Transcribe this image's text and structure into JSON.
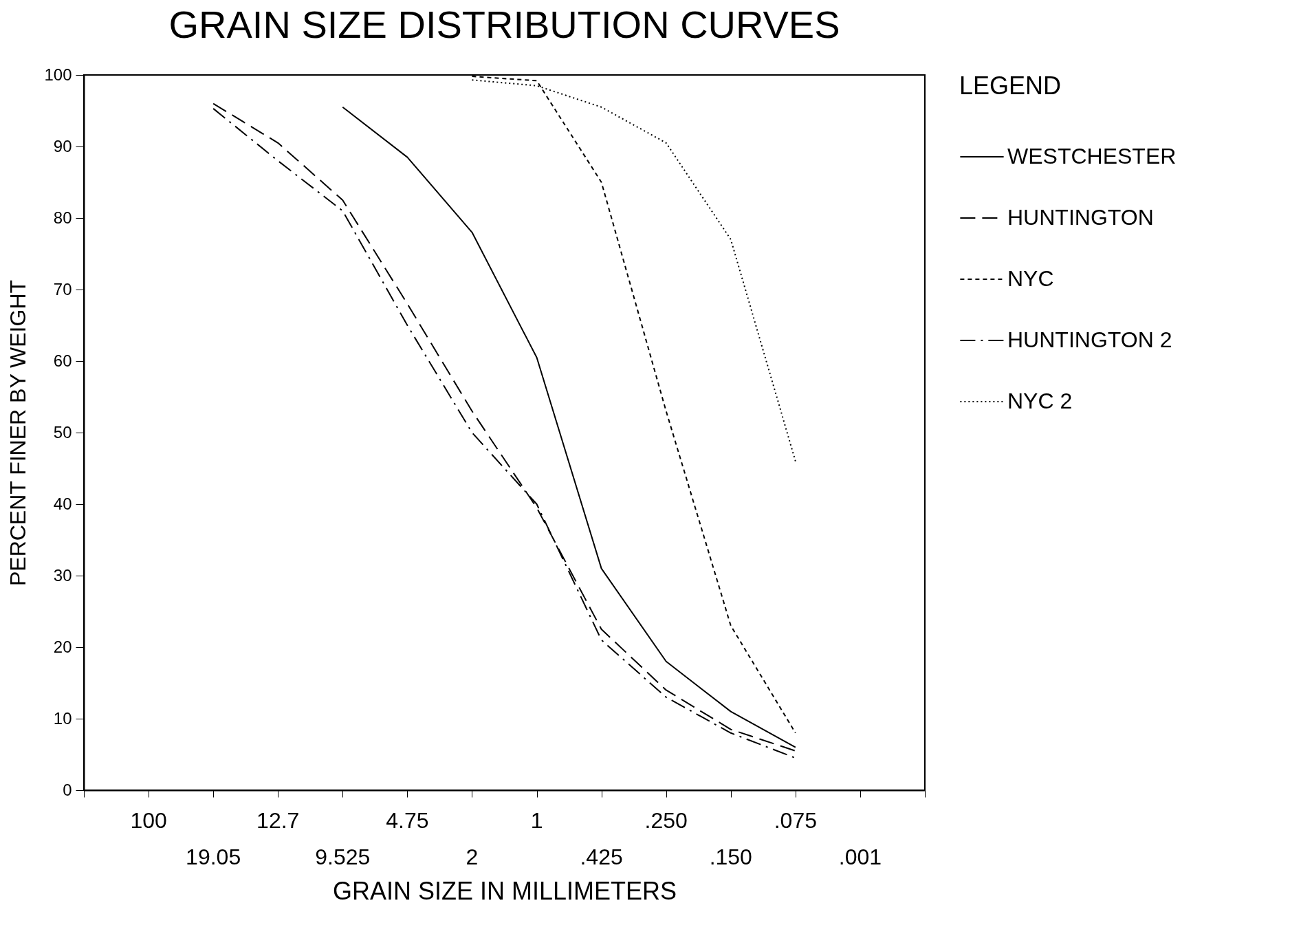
{
  "chart_data": {
    "type": "line",
    "title": "GRAIN SIZE DISTRIBUTION CURVES",
    "xlabel": "GRAIN SIZE IN MILLIMETERS",
    "ylabel": "PERCENT FINER BY WEIGHT",
    "legend_title": "LEGEND",
    "categories": [
      null,
      "100",
      "19.05",
      "12.7",
      "9.525",
      "4.75",
      "2",
      "1",
      ".425",
      ".250",
      ".150",
      ".075",
      ".001",
      null
    ],
    "series": [
      {
        "name": "WESTCHESTER",
        "color": "#000000",
        "line_style": "solid",
        "values": [
          null,
          null,
          null,
          null,
          95.5,
          88.5,
          78,
          60.5,
          31,
          18,
          11,
          6,
          null,
          null
        ]
      },
      {
        "name": "HUNTINGTON",
        "color": "#000000",
        "line_style": "dashed",
        "values": [
          null,
          null,
          96,
          90.5,
          82.5,
          68,
          53,
          39.5,
          22.5,
          14,
          8.5,
          5.5,
          null,
          null
        ]
      },
      {
        "name": "NYC",
        "color": "#000000",
        "line_style": "short_dashed",
        "values": [
          null,
          null,
          null,
          null,
          null,
          null,
          99.8,
          99.2,
          85,
          53,
          23,
          8,
          null,
          null
        ]
      },
      {
        "name": "HUNTINGTON 2",
        "color": "#000000",
        "line_style": "dashdot",
        "values": [
          null,
          null,
          95.3,
          88,
          81,
          65,
          50,
          40,
          21,
          13,
          8,
          4.5,
          null,
          null
        ]
      },
      {
        "name": "NYC 2",
        "color": "#000000",
        "line_style": "dotted",
        "values": [
          null,
          null,
          null,
          null,
          null,
          null,
          99.3,
          98.5,
          95.5,
          90.5,
          77,
          46,
          null,
          null
        ]
      }
    ],
    "ylim": [
      0,
      100
    ],
    "yticks": [
      0,
      10,
      20,
      30,
      40,
      50,
      60,
      70,
      80,
      90,
      100
    ],
    "grid": false,
    "legend": "right",
    "marker": "none"
  }
}
